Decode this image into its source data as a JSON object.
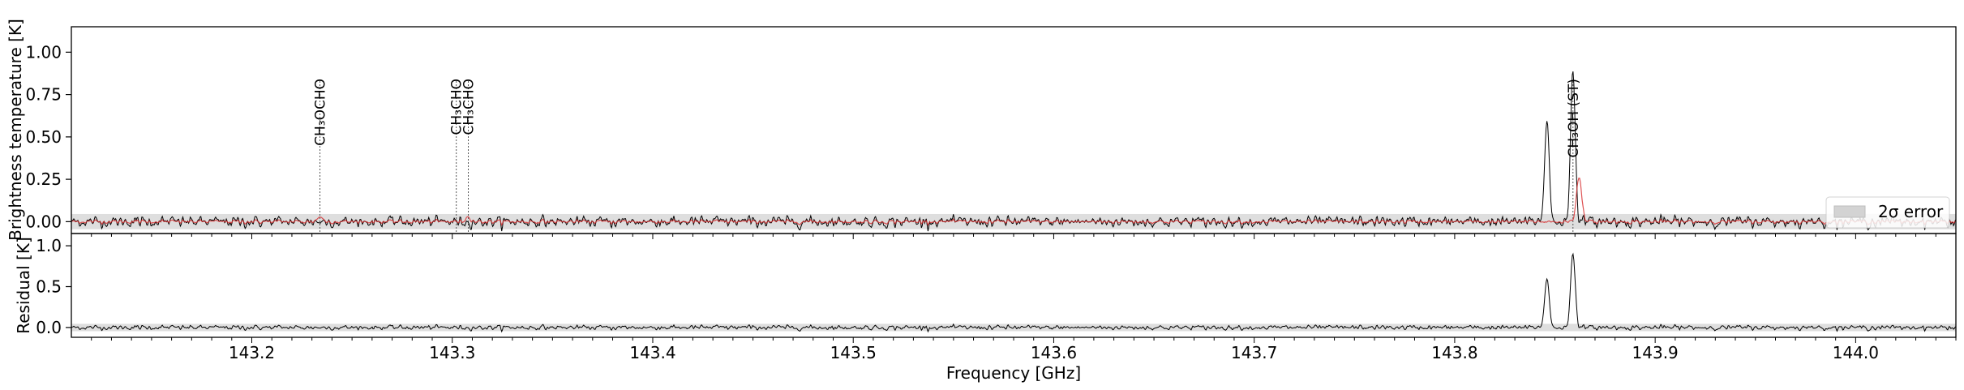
{
  "chart_data": [
    {
      "type": "line",
      "panel": "top",
      "ylabel": "Brightness temperature [K]",
      "xlim": [
        143.11,
        144.05
      ],
      "ylim": [
        -0.07,
        1.15
      ],
      "yticks": [
        "0.00",
        "0.25",
        "0.50",
        "0.75",
        "1.00"
      ],
      "ytick_values": [
        0,
        0.25,
        0.5,
        0.75,
        1.0
      ],
      "error_band": {
        "label": "2σ error",
        "low": -0.045,
        "high": 0.045
      },
      "line_labels": [
        {
          "text": "CH₃OCHO",
          "freq": 143.234
        },
        {
          "text": "CH₃CHO",
          "freq": 143.302
        },
        {
          "text": "CH₃CHO",
          "freq": 143.308
        },
        {
          "text": "CH₃OH (ST)",
          "freq": 143.859
        }
      ],
      "observed_peaks": [
        {
          "freq": 143.846,
          "value": 0.6
        },
        {
          "freq": 143.859,
          "value": 0.91
        }
      ],
      "model_peaks": [
        {
          "freq": 143.862,
          "value": 0.27
        },
        {
          "freq": 143.234,
          "value": 0.03
        },
        {
          "freq": 143.308,
          "value": 0.03
        }
      ],
      "legend": {
        "position": "lower right"
      },
      "series": [
        {
          "color": "#000000"
        },
        {
          "color": "#d62728"
        }
      ]
    },
    {
      "type": "line",
      "panel": "bottom",
      "ylabel": "Residual [K]",
      "xlabel": "Frequency [GHz]",
      "xlim": [
        143.11,
        144.05
      ],
      "ylim": [
        -0.12,
        1.15
      ],
      "yticks": [
        "0.0",
        "0.5",
        "1.0"
      ],
      "ytick_values": [
        0,
        0.5,
        1.0
      ],
      "xticks": [
        "143.2",
        "143.3",
        "143.4",
        "143.5",
        "143.6",
        "143.7",
        "143.8",
        "143.9",
        "144.0"
      ],
      "xtick_values": [
        143.2,
        143.3,
        143.4,
        143.5,
        143.6,
        143.7,
        143.8,
        143.9,
        144.0
      ],
      "residual_peaks": [
        {
          "freq": 143.846,
          "value": 0.6
        },
        {
          "freq": 143.859,
          "value": 0.92
        }
      ]
    }
  ]
}
